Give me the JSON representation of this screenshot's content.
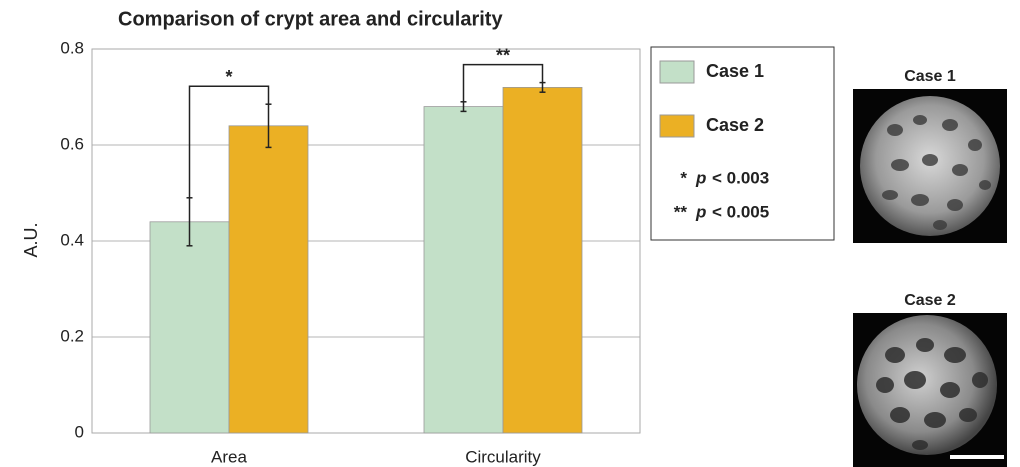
{
  "chart_data": {
    "type": "bar",
    "title": "Comparison of crypt area and circularity",
    "y_label": "A.U.",
    "categories": [
      "Area",
      "Circularity"
    ],
    "series": [
      {
        "name": "Case 1",
        "color": "#c3e0c8",
        "values": [
          0.44,
          0.68
        ],
        "errors": [
          0.05,
          0.01
        ]
      },
      {
        "name": "Case 2",
        "color": "#ebb024",
        "values": [
          0.64,
          0.72
        ],
        "errors": [
          0.045,
          0.01
        ]
      }
    ],
    "significance_labels": [
      "*",
      "**"
    ],
    "notes": [
      {
        "symbol": "*",
        "p": "p",
        "text": "< 0.003"
      },
      {
        "symbol": "**",
        "p": "p",
        "text": "< 0.005"
      }
    ],
    "ylim": [
      0,
      0.8
    ],
    "yticks": [
      0,
      0.2,
      0.4,
      0.6,
      0.8
    ],
    "grid": true
  }
}
